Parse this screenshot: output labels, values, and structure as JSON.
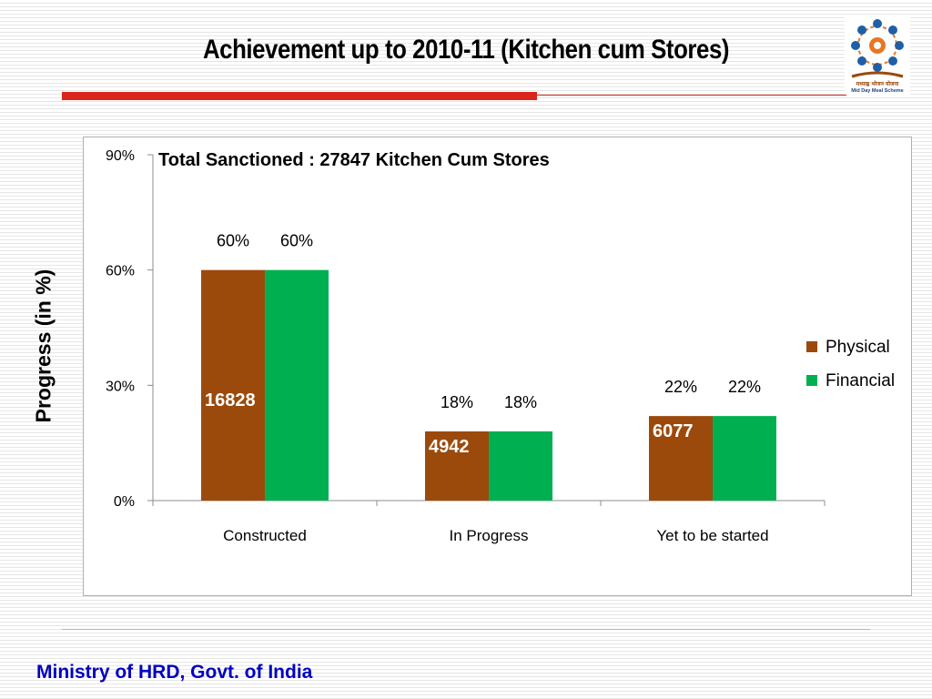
{
  "slide": {
    "title": "Achievement up to 2010-11 (Kitchen cum Stores)",
    "footer": "Ministry of HRD, Govt. of India"
  },
  "logo": {
    "caption_line1": "मध्याह्न भोजन योजना",
    "caption_line2": "Mid Day Meal Scheme"
  },
  "colors": {
    "title_rule": "#d9261c",
    "physical": "#9b4a0c",
    "financial": "#00b050",
    "footer_text": "#0000c0"
  },
  "chart_data": {
    "type": "bar",
    "title": "",
    "annotation": "Total Sanctioned :  27847 Kitchen Cum Stores",
    "xlabel": "",
    "ylabel": "Progress (in %)",
    "ylim": [
      0,
      90
    ],
    "yticks": [
      0,
      30,
      60,
      90
    ],
    "ytick_labels": [
      "0%",
      "30%",
      "60%",
      "90%"
    ],
    "categories": [
      "Constructed",
      "In Progress",
      "Yet to be started"
    ],
    "series": [
      {
        "name": "Physical",
        "color": "#9b4a0c",
        "values": [
          60,
          18,
          22
        ],
        "value_labels": [
          "60%",
          "18%",
          "22%"
        ],
        "count_labels": [
          "16828",
          "4942",
          "6077"
        ]
      },
      {
        "name": "Financial",
        "color": "#00b050",
        "values": [
          60,
          18,
          22
        ],
        "value_labels": [
          "60%",
          "18%",
          "22%"
        ]
      }
    ],
    "grid": false,
    "legend": "right"
  }
}
